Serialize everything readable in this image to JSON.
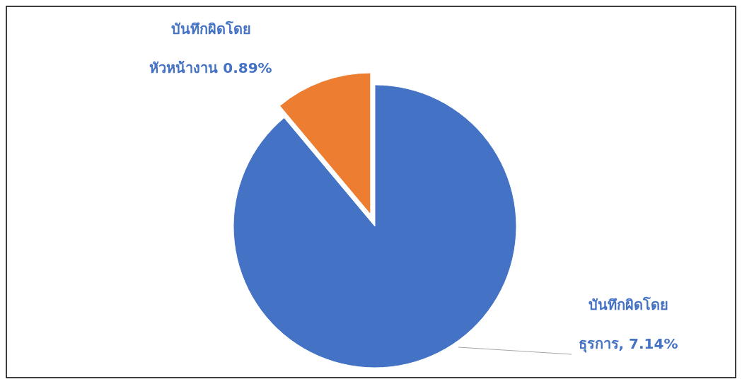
{
  "chart_data": {
    "type": "pie",
    "categories": [
      "บันทึกผิดโดย ธุรการ",
      "บันทึกผิดโดย หัวหน้างาน"
    ],
    "values": [
      7.14,
      0.89
    ],
    "colors": [
      "#4472c4",
      "#ed7d31"
    ],
    "value_labels": [
      ", 7.14%",
      "0.89%"
    ]
  }
}
